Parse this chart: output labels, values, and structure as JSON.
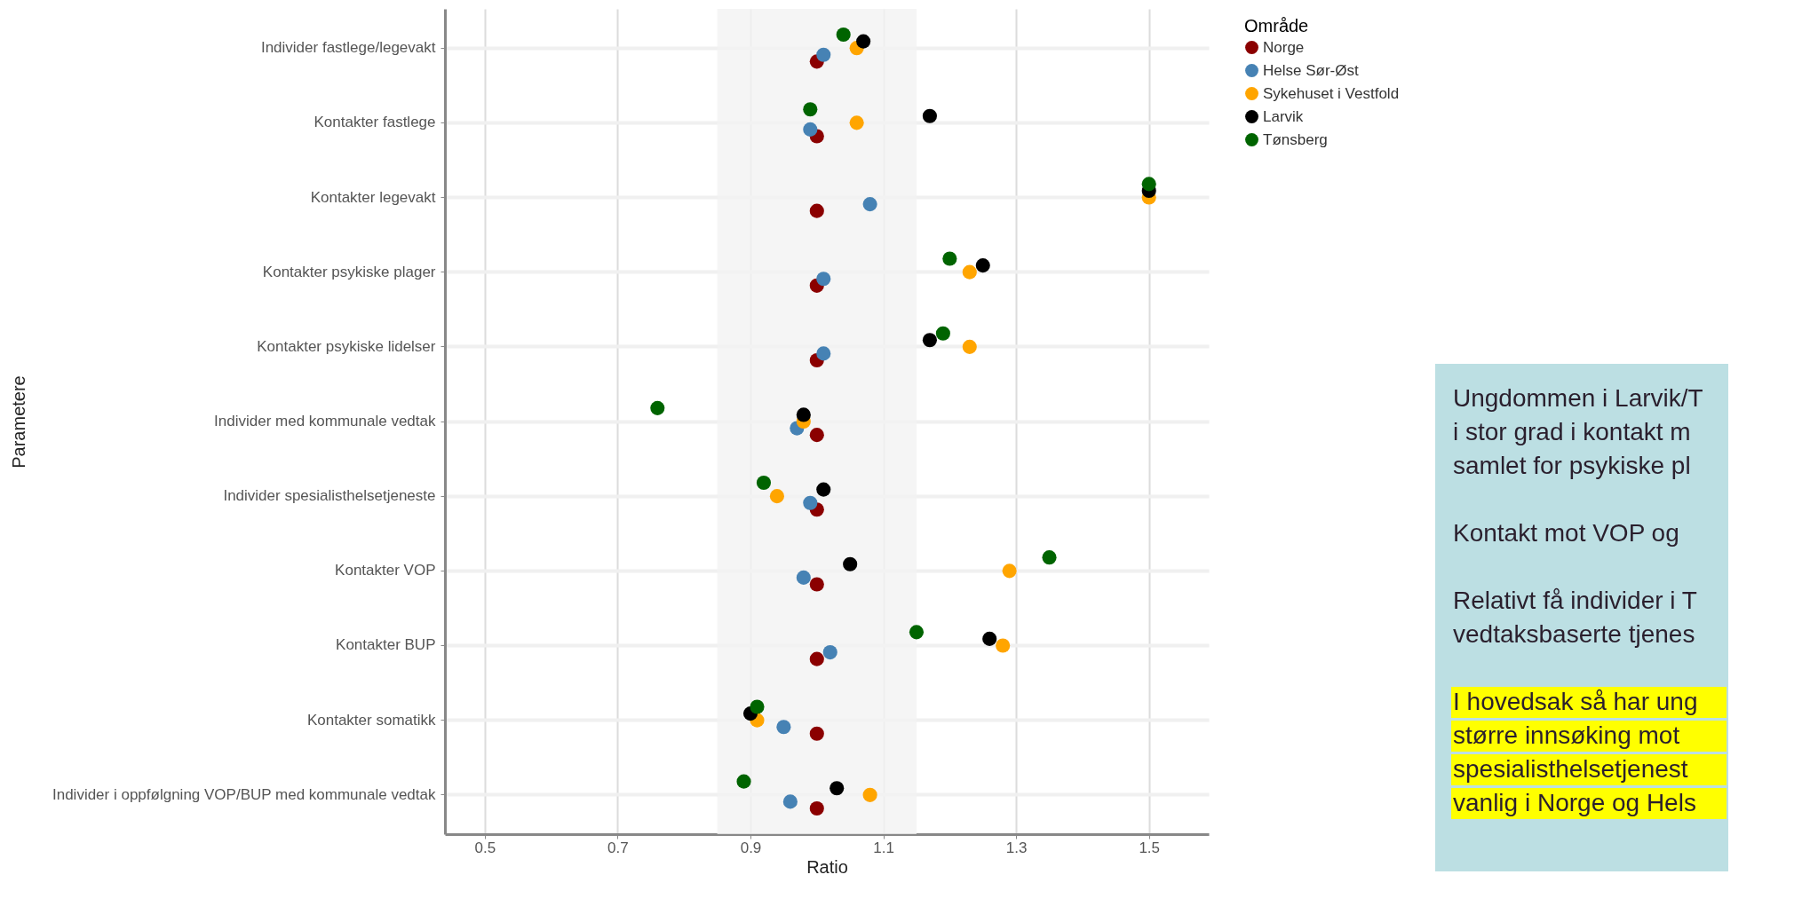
{
  "chart_data": [
    {
      "type": "scatter",
      "xlabel": "Ratio",
      "ylabel": "Parametere",
      "legend_title": "Område",
      "categories": [
        "Individer fastlege/legevakt",
        "Kontakter fastlege",
        "Kontakter legevakt",
        "Kontakter psykiske plager",
        "Kontakter psykiske lidelser",
        "Individer med kommunale vedtak",
        "Individer spesialisthelsetjeneste",
        "Kontakter VOP",
        "Kontakter BUP",
        "Kontakter somatikk",
        "Individer i oppfølgning VOP/BUP med kommunale vedtak"
      ],
      "series": [
        {
          "name": "Norge",
          "color": "#8b0000",
          "values": [
            1.0,
            1.0,
            1.0,
            1.0,
            1.0,
            1.0,
            1.0,
            1.0,
            1.0,
            1.0,
            1.0
          ]
        },
        {
          "name": "Helse Sør-Øst",
          "color": "#4682b4",
          "values": [
            1.01,
            0.99,
            1.08,
            1.01,
            1.01,
            0.97,
            0.99,
            0.98,
            1.02,
            0.95,
            0.96
          ]
        },
        {
          "name": "Sykehuset i Vestfold",
          "color": "#ffa500",
          "values": [
            1.06,
            1.06,
            1.5,
            1.23,
            1.23,
            0.98,
            0.94,
            1.29,
            1.28,
            0.91,
            1.08
          ]
        },
        {
          "name": "Larvik",
          "color": "#000000",
          "values": [
            1.07,
            1.17,
            1.5,
            1.25,
            1.17,
            0.98,
            1.01,
            1.05,
            1.26,
            0.9,
            1.03
          ]
        },
        {
          "name": "Tønsberg",
          "color": "#006400",
          "values": [
            1.04,
            0.99,
            1.5,
            1.2,
            1.19,
            0.76,
            0.92,
            1.35,
            1.15,
            0.91,
            0.89
          ]
        }
      ],
      "xlim": [
        0.44,
        1.59
      ],
      "xticks": [
        0.5,
        0.7,
        0.9,
        1.1,
        1.3,
        1.5
      ],
      "bands": [
        {
          "axis": "x",
          "from": 0.85,
          "to": 1.15,
          "color": "#f2f2f2"
        }
      ],
      "grid": true,
      "legend": "right",
      "marker": "circle",
      "orientation": "horizontal"
    },
    {
      "type": "other",
      "annotations": [
        "Ungdommen i Larvik/T\ni stor grad i kontakt m\nsamlet for psykiske pl",
        "Kontakt mot VOP og",
        "Relativt få individer i T\nvedtaksbaserte tjenes",
        "I hovedsak så har ung\nstørre innsøking mot\nspesialisthelsetjenest\nvanlig i Norge og Hels"
      ]
    }
  ]
}
